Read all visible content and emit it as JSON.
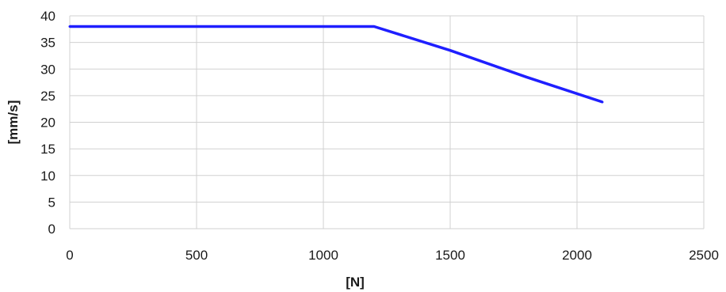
{
  "chart_data": {
    "type": "line",
    "xlabel": "[N]",
    "ylabel": "[mm/s]",
    "xlim": [
      0,
      2500
    ],
    "ylim": [
      0,
      40
    ],
    "x_ticks": [
      0,
      500,
      1000,
      1500,
      2000,
      2500
    ],
    "y_ticks": [
      0,
      5,
      10,
      15,
      20,
      25,
      30,
      35,
      40
    ],
    "grid": true,
    "legend": "none",
    "series": [
      {
        "color": "#1f1fff",
        "x": [
          0,
          1200,
          1500,
          1800,
          2100
        ],
        "y": [
          38,
          38,
          33.5,
          28.5,
          23.8
        ]
      }
    ]
  }
}
